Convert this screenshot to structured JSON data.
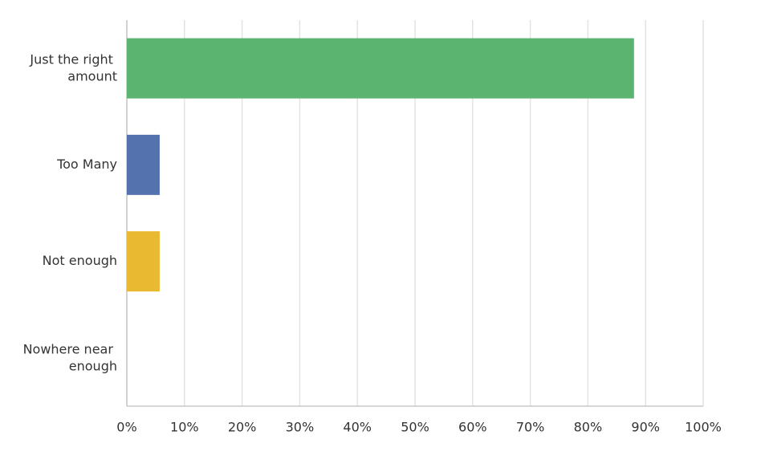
{
  "chart_data": {
    "type": "bar",
    "orientation": "horizontal",
    "categories": [
      "Just the right amount",
      "Too Many",
      "Not enough",
      "Nowhere near enough"
    ],
    "values": [
      88,
      5.7,
      5.7,
      0
    ],
    "colors": [
      "#5bb46f",
      "#5473ae",
      "#eab932",
      "#8fb3d9"
    ],
    "xlim": [
      0,
      100
    ],
    "xticks": [
      {
        "value": 0,
        "label": "0%"
      },
      {
        "value": 10,
        "label": "10%"
      },
      {
        "value": 20,
        "label": "20%"
      },
      {
        "value": 30,
        "label": "30%"
      },
      {
        "value": 40,
        "label": "40%"
      },
      {
        "value": 50,
        "label": "50%"
      },
      {
        "value": 60,
        "label": "60%"
      },
      {
        "value": 70,
        "label": "70%"
      },
      {
        "value": 80,
        "label": "80%"
      },
      {
        "value": 90,
        "label": "90%"
      },
      {
        "value": 100,
        "label": "100%"
      }
    ],
    "grid": true
  }
}
